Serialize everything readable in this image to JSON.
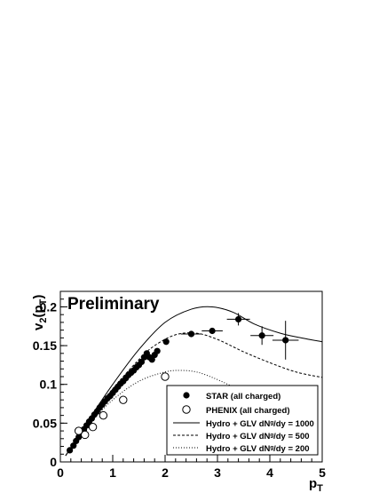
{
  "chart_data": {
    "type": "scatter",
    "title": "",
    "annotation": "Preliminary",
    "xlabel": {
      "main": "p",
      "sub": "T"
    },
    "ylabel": {
      "pre": "v",
      "sub1": "2",
      "mid": "(p",
      "sub2": "T",
      "post": ")"
    },
    "xlim": [
      0,
      5
    ],
    "ylim": [
      0,
      0.22
    ],
    "xticks": [
      0,
      1,
      2,
      3,
      4,
      5
    ],
    "xtick_labels": [
      "0",
      "1",
      "2",
      "3",
      "4",
      "5"
    ],
    "yticks": [
      0,
      0.05,
      0.1,
      0.15,
      0.2
    ],
    "ytick_labels": [
      "0",
      "0.05",
      "0.1",
      "0.15",
      "0.2"
    ],
    "grid": false,
    "legend_position": "bottom-right",
    "series": [
      {
        "name": "STAR (all charged)",
        "marker": "filled-circle",
        "points": [
          {
            "x": 0.18,
            "y": 0.015
          },
          {
            "x": 0.25,
            "y": 0.021
          },
          {
            "x": 0.3,
            "y": 0.027
          },
          {
            "x": 0.35,
            "y": 0.032
          },
          {
            "x": 0.4,
            "y": 0.037
          },
          {
            "x": 0.45,
            "y": 0.042
          },
          {
            "x": 0.5,
            "y": 0.047
          },
          {
            "x": 0.55,
            "y": 0.052
          },
          {
            "x": 0.6,
            "y": 0.056
          },
          {
            "x": 0.65,
            "y": 0.061
          },
          {
            "x": 0.7,
            "y": 0.065
          },
          {
            "x": 0.75,
            "y": 0.07
          },
          {
            "x": 0.8,
            "y": 0.074
          },
          {
            "x": 0.85,
            "y": 0.078
          },
          {
            "x": 0.9,
            "y": 0.082
          },
          {
            "x": 0.95,
            "y": 0.085
          },
          {
            "x": 1.0,
            "y": 0.089
          },
          {
            "x": 1.05,
            "y": 0.093
          },
          {
            "x": 1.1,
            "y": 0.097
          },
          {
            "x": 1.15,
            "y": 0.101
          },
          {
            "x": 1.2,
            "y": 0.104
          },
          {
            "x": 1.25,
            "y": 0.108
          },
          {
            "x": 1.3,
            "y": 0.112
          },
          {
            "x": 1.35,
            "y": 0.115
          },
          {
            "x": 1.4,
            "y": 0.118
          },
          {
            "x": 1.45,
            "y": 0.122
          },
          {
            "x": 1.5,
            "y": 0.125
          },
          {
            "x": 1.55,
            "y": 0.129
          },
          {
            "x": 1.6,
            "y": 0.135
          },
          {
            "x": 1.65,
            "y": 0.14
          },
          {
            "x": 1.7,
            "y": 0.135
          },
          {
            "x": 1.75,
            "y": 0.132
          },
          {
            "x": 1.8,
            "y": 0.138
          },
          {
            "x": 1.85,
            "y": 0.143
          },
          {
            "x": 2.02,
            "y": 0.155
          },
          {
            "x": 2.5,
            "y": 0.165,
            "xerr": 0.2
          },
          {
            "x": 2.9,
            "y": 0.169,
            "xerr": 0.2,
            "yerr": 0.004
          },
          {
            "x": 3.4,
            "y": 0.184,
            "xerr": 0.22,
            "yerr": 0.008
          },
          {
            "x": 3.85,
            "y": 0.163,
            "xerr": 0.22,
            "yerr": 0.012
          },
          {
            "x": 4.3,
            "y": 0.157,
            "xerr": 0.25,
            "yerr": 0.025
          }
        ]
      },
      {
        "name": "PHENIX (all charged)",
        "marker": "open-circle",
        "points": [
          {
            "x": 0.35,
            "y": 0.04
          },
          {
            "x": 0.47,
            "y": 0.035
          },
          {
            "x": 0.62,
            "y": 0.045
          },
          {
            "x": 0.82,
            "y": 0.06
          },
          {
            "x": 1.2,
            "y": 0.08
          },
          {
            "x": 2.0,
            "y": 0.11
          }
        ]
      },
      {
        "name": "Hydro + GLV dNᵍ/dy = 1000",
        "style": "solid",
        "x": [
          0.1,
          0.5,
          1.0,
          1.5,
          2.0,
          2.5,
          2.9,
          3.3,
          3.7,
          4.2,
          4.6,
          5.0
        ],
        "y": [
          0.008,
          0.05,
          0.1,
          0.145,
          0.18,
          0.197,
          0.2,
          0.193,
          0.178,
          0.166,
          0.16,
          0.155
        ]
      },
      {
        "name": "Hydro + GLV dNᵍ/dy = 500",
        "style": "dashed",
        "x": [
          0.1,
          0.5,
          1.0,
          1.5,
          1.8,
          2.2,
          2.6,
          3.0,
          3.5,
          4.0,
          4.5,
          5.0
        ],
        "y": [
          0.008,
          0.048,
          0.094,
          0.132,
          0.15,
          0.164,
          0.166,
          0.158,
          0.142,
          0.128,
          0.116,
          0.109
        ]
      },
      {
        "name": "Hydro + GLV dNᵍ/dy = 200",
        "style": "dotted",
        "x": [
          0.1,
          0.5,
          1.0,
          1.5,
          2.0,
          2.3,
          2.6,
          2.9,
          3.2,
          3.5
        ],
        "y": [
          0.008,
          0.045,
          0.08,
          0.104,
          0.116,
          0.118,
          0.116,
          0.109,
          0.1,
          0.09
        ]
      }
    ]
  }
}
